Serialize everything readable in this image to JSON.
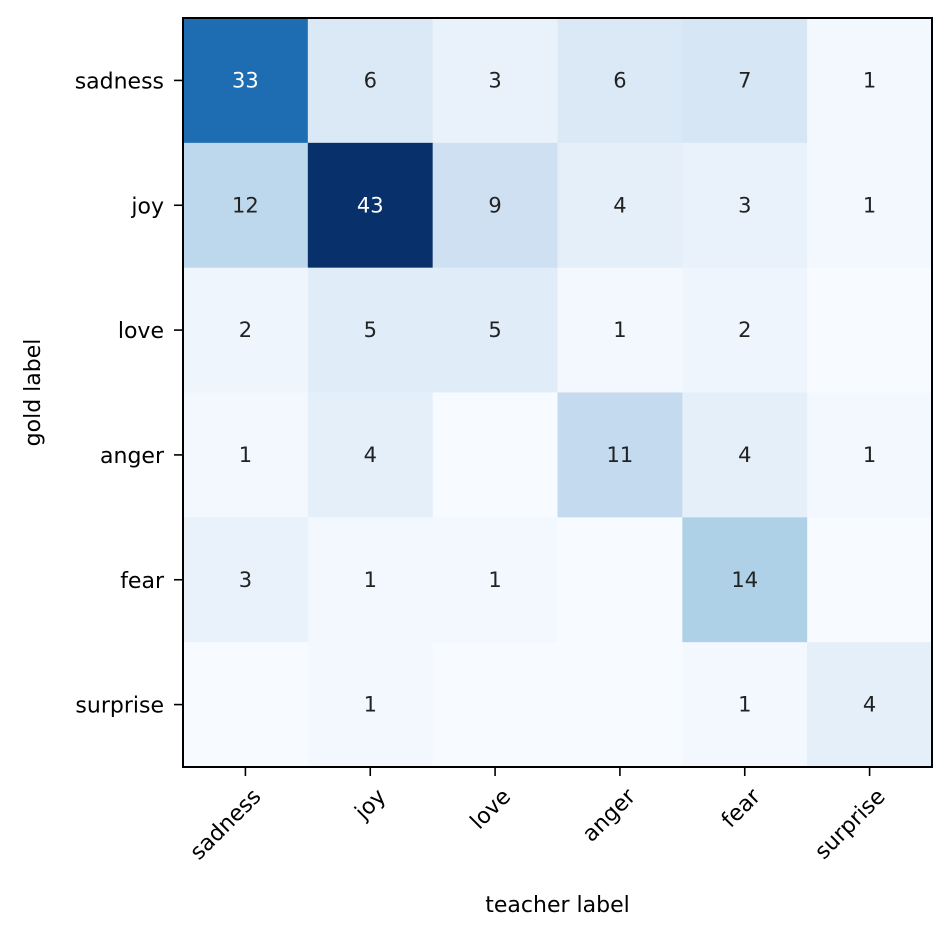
{
  "chart_data": {
    "type": "heatmap",
    "title": "",
    "xlabel": "teacher label",
    "ylabel": "gold label",
    "x_categories": [
      "sadness",
      "joy",
      "love",
      "anger",
      "fear",
      "surprise"
    ],
    "y_categories": [
      "sadness",
      "joy",
      "love",
      "anger",
      "fear",
      "surprise"
    ],
    "values": [
      [
        33,
        6,
        3,
        6,
        7,
        1
      ],
      [
        12,
        43,
        9,
        4,
        3,
        1
      ],
      [
        2,
        5,
        5,
        1,
        2,
        0
      ],
      [
        1,
        4,
        0,
        11,
        4,
        1
      ],
      [
        3,
        1,
        1,
        0,
        14,
        0
      ],
      [
        0,
        1,
        0,
        0,
        1,
        4
      ]
    ],
    "zero_cells_labeled": false,
    "colormap": "Blues",
    "color_range": [
      0,
      43
    ],
    "colormap_stops": [
      "#f7fbff",
      "#deebf7",
      "#c6dbef",
      "#9ecae1",
      "#6baed6",
      "#4292c6",
      "#2171b5",
      "#08519c",
      "#08306b"
    ],
    "text_color_dark": "#222222",
    "text_color_light": "#ffffff",
    "grid": false,
    "legend": "none"
  }
}
